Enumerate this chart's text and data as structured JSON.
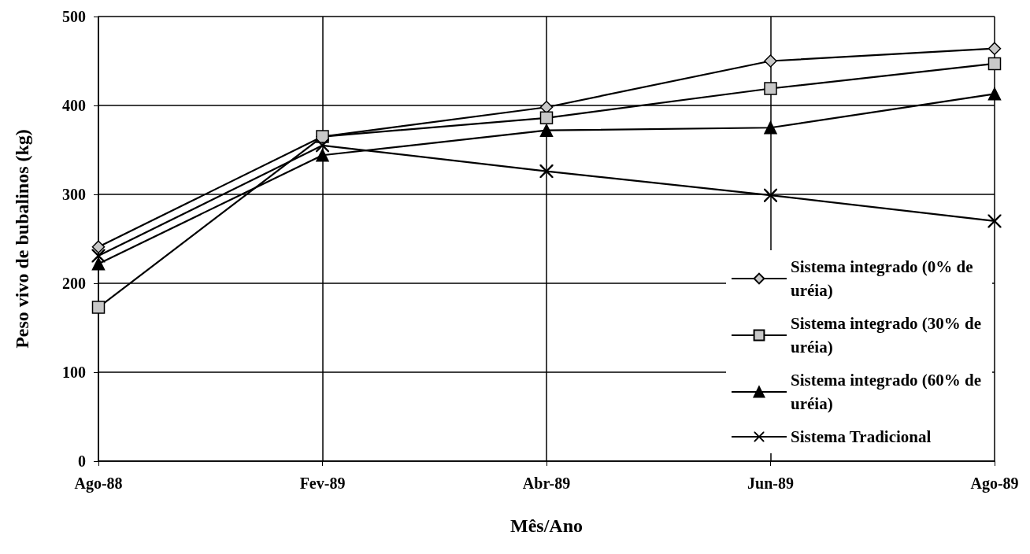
{
  "chart_data": {
    "type": "line",
    "xlabel": "Mês/Ano",
    "ylabel": "Peso vivo de bubalinos (kg)",
    "categories": [
      "Ago-88",
      "Fev-89",
      "Abr-89",
      "Jun-89",
      "Ago-89"
    ],
    "series": [
      {
        "name": "Sistema integrado (0% de uréia)",
        "color": "#000000",
        "marker": "diamond",
        "values": [
          241,
          365,
          398,
          450,
          464
        ]
      },
      {
        "name": "Sistema integrado (30% de uréia)",
        "color": "#000000",
        "marker": "square",
        "values": [
          173,
          365,
          386,
          419,
          447
        ]
      },
      {
        "name": "Sistema integrado (60% de uréia)",
        "color": "#000000",
        "marker": "triangle",
        "values": [
          222,
          344,
          372,
          375,
          413
        ]
      },
      {
        "name": "Sistema Tradicional",
        "color": "#000000",
        "marker": "cross",
        "values": [
          231,
          355,
          326,
          299,
          270
        ]
      }
    ],
    "ylim": [
      0,
      500
    ],
    "yticks": [
      0,
      100,
      200,
      300,
      400,
      500
    ],
    "grid": true,
    "legend": "bottom right",
    "line_style": "solid"
  }
}
